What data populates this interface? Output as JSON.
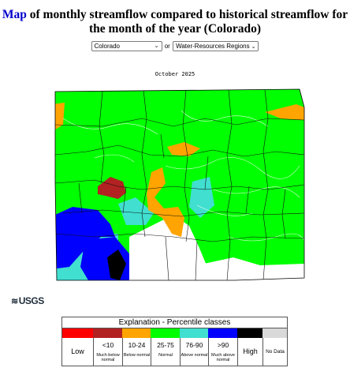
{
  "header": {
    "title_link": "Map",
    "title_rest": " of monthly streamflow compared to historical streamflow for the month of the year (Colorado)"
  },
  "selectors": {
    "state_value": "Colorado",
    "or_text": "or",
    "region_value": "Water-Resources Regions"
  },
  "map": {
    "month_label": "October 2025",
    "state": "Colorado"
  },
  "logo": {
    "text": "USGS"
  },
  "legend": {
    "title": "Explanation - Percentile classes",
    "low": "Low",
    "high": "High",
    "no_data": "No Data",
    "classes": [
      {
        "range": "<10",
        "desc": "Much below normal",
        "color": "#b22222"
      },
      {
        "range": "10-24",
        "desc": "Below normal",
        "color": "#ffa400"
      },
      {
        "range": "25-75",
        "desc": "Normal",
        "color": "#00ff00"
      },
      {
        "range": "76-90",
        "desc": "Above normal",
        "color": "#40dfd0"
      },
      {
        "range": ">90",
        "desc": "Much above normal",
        "color": "#0000ff"
      }
    ],
    "colors": {
      "low": "#ff0000",
      "high": "#000000",
      "no_data": "#d9d9d9"
    }
  }
}
